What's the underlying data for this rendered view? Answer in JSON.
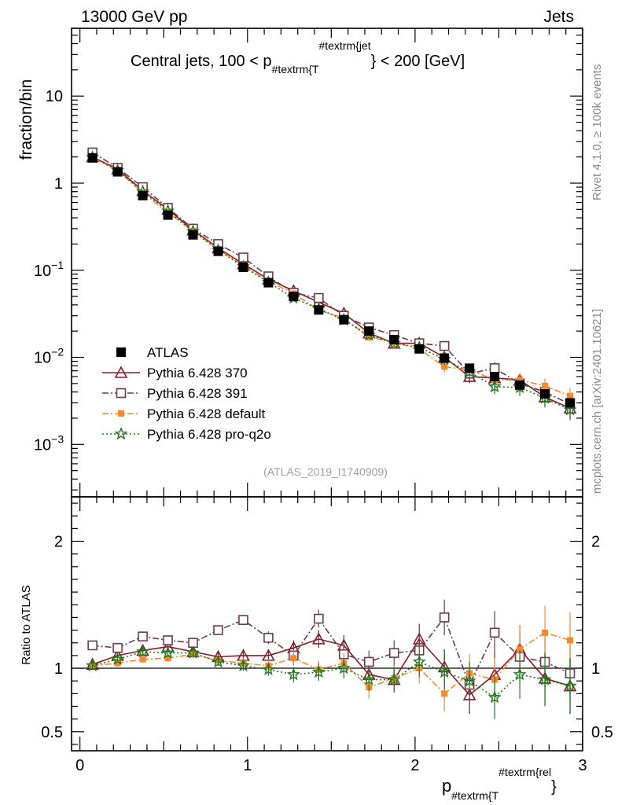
{
  "header": {
    "left_label": "13000 GeV pp",
    "right_label": "Jets",
    "side_label_top": "Rivet 4.1.0, ≥ 100k events",
    "side_label_bottom": "mcplots.cern.ch [arXiv:2401.10621]",
    "analysis_id": "(ATLAS_2019_I1740909)"
  },
  "colors": {
    "atlas": "#000000",
    "p370": "#8b1a2b",
    "p391": "#6e3a4e",
    "default": "#f58a2c",
    "proq2o": "#1a7a1a"
  },
  "chart_data": [
    {
      "type": "scatter",
      "panel": "main",
      "title": "Central jets, 100 < p_T^jet < 200 [GeV]",
      "title_parts": {
        "pre": "Central jets, 100 < p",
        "sub": "#textrm{T",
        "sup": "#textrm{jet",
        "post": "} < 200 [GeV]"
      },
      "ylabel": "fraction/bin",
      "yscale": "log",
      "ylim": [
        0.00025,
        60
      ],
      "xlim": [
        -0.05,
        3.0
      ],
      "yticks": [
        {
          "value": 10,
          "base": "10",
          "exp": ""
        },
        {
          "value": 1,
          "base": "1",
          "exp": ""
        },
        {
          "value": 0.1,
          "base": "10",
          "exp": "−1"
        },
        {
          "value": 0.01,
          "base": "10",
          "exp": "−2"
        },
        {
          "value": 0.001,
          "base": "10",
          "exp": "−3"
        }
      ],
      "x": [
        0.075,
        0.225,
        0.375,
        0.525,
        0.675,
        0.825,
        0.975,
        1.125,
        1.275,
        1.425,
        1.575,
        1.725,
        1.875,
        2.025,
        2.175,
        2.325,
        2.475,
        2.625,
        2.775,
        2.925
      ],
      "series": [
        {
          "name": "ATLAS",
          "key": "atlas",
          "marker": "square-filled",
          "line": "none",
          "values": [
            1.95,
            1.35,
            0.72,
            0.43,
            0.255,
            0.165,
            0.108,
            0.072,
            0.05,
            0.035,
            0.027,
            0.02,
            0.016,
            0.0125,
            0.0098,
            0.0075,
            0.006,
            0.0048,
            0.0038,
            0.003
          ]
        },
        {
          "name": "Pythia 6.428 370",
          "key": "p370",
          "marker": "triangle-open",
          "line": "solid",
          "values": [
            2.0,
            1.45,
            0.82,
            0.5,
            0.29,
            0.18,
            0.118,
            0.079,
            0.058,
            0.043,
            0.032,
            0.019,
            0.0145,
            0.0145,
            0.01,
            0.006,
            0.0058,
            0.0055,
            0.0035,
            0.0026
          ]
        },
        {
          "name": "Pythia 6.428 391",
          "key": "p391",
          "marker": "square-open",
          "line": "dashdot",
          "values": [
            2.25,
            1.5,
            0.9,
            0.52,
            0.3,
            0.2,
            0.14,
            0.085,
            0.055,
            0.048,
            0.03,
            0.022,
            0.018,
            0.0145,
            0.0135,
            0.0065,
            0.0075,
            0.005,
            0.004,
            0.0029
          ]
        },
        {
          "name": "Pythia 6.428 default",
          "key": "default",
          "marker": "square-small-filled",
          "line": "dashdot",
          "values": [
            2.0,
            1.4,
            0.77,
            0.46,
            0.28,
            0.175,
            0.112,
            0.075,
            0.054,
            0.035,
            0.028,
            0.017,
            0.015,
            0.0125,
            0.0078,
            0.0072,
            0.0055,
            0.0055,
            0.0047,
            0.0036
          ]
        },
        {
          "name": "Pythia 6.428 pro-q2o",
          "key": "proq2o",
          "marker": "star-open",
          "line": "dotted",
          "values": [
            1.98,
            1.4,
            0.8,
            0.48,
            0.28,
            0.17,
            0.11,
            0.073,
            0.048,
            0.036,
            0.027,
            0.018,
            0.0145,
            0.013,
            0.0095,
            0.0068,
            0.0046,
            0.0045,
            0.0034,
            0.0025
          ]
        }
      ],
      "legend": [
        "ATLAS",
        "Pythia 6.428 370",
        "Pythia 6.428 391",
        "Pythia 6.428 default",
        "Pythia 6.428 pro-q2o"
      ]
    },
    {
      "type": "scatter",
      "panel": "ratio",
      "ylabel": "Ratio to ATLAS",
      "xlabel": "p_T^rel",
      "xlabel_parts": {
        "pre": "p",
        "sub": "#textrm{T",
        "sup": "#textrm{rel",
        "post": "}"
      },
      "ylim": [
        0.35,
        2.35
      ],
      "xlim": [
        -0.05,
        3.0
      ],
      "yticks": [
        0.5,
        1,
        2
      ],
      "xticks": [
        0,
        1,
        2,
        3
      ],
      "reference": 1,
      "x": [
        0.075,
        0.225,
        0.375,
        0.525,
        0.675,
        0.825,
        0.975,
        1.125,
        1.275,
        1.425,
        1.575,
        1.725,
        1.875,
        2.025,
        2.175,
        2.325,
        2.475,
        2.625,
        2.775,
        2.925
      ],
      "series": [
        {
          "name": "Pythia 6.428 370",
          "key": "p370",
          "values": [
            1.03,
            1.1,
            1.14,
            1.17,
            1.13,
            1.09,
            1.1,
            1.1,
            1.16,
            1.23,
            1.18,
            0.95,
            0.91,
            1.23,
            1.01,
            0.79,
            0.95,
            1.15,
            0.92,
            0.86
          ],
          "errors": [
            0.02,
            0.02,
            0.02,
            0.03,
            0.03,
            0.03,
            0.04,
            0.05,
            0.06,
            0.07,
            0.08,
            0.09,
            0.1,
            0.12,
            0.14,
            0.15,
            0.17,
            0.19,
            0.21,
            0.22
          ]
        },
        {
          "name": "Pythia 6.428 391",
          "key": "p391",
          "values": [
            1.18,
            1.16,
            1.25,
            1.22,
            1.2,
            1.3,
            1.38,
            1.24,
            1.1,
            1.39,
            1.11,
            1.05,
            1.12,
            1.14,
            1.4,
            0.87,
            1.28,
            1.09,
            1.05,
            0.96
          ],
          "errors": [
            0.02,
            0.02,
            0.02,
            0.03,
            0.03,
            0.03,
            0.04,
            0.05,
            0.06,
            0.07,
            0.08,
            0.09,
            0.1,
            0.12,
            0.14,
            0.15,
            0.17,
            0.19,
            0.21,
            0.22
          ]
        },
        {
          "name": "Pythia 6.428 default",
          "key": "default",
          "values": [
            1.02,
            1.04,
            1.07,
            1.08,
            1.11,
            1.06,
            1.04,
            1.02,
            1.08,
            0.99,
            1.04,
            0.85,
            0.92,
            1.0,
            0.8,
            0.96,
            0.91,
            1.15,
            1.28,
            1.22
          ],
          "errors": [
            0.02,
            0.02,
            0.02,
            0.03,
            0.03,
            0.03,
            0.04,
            0.05,
            0.06,
            0.07,
            0.08,
            0.09,
            0.1,
            0.12,
            0.14,
            0.15,
            0.17,
            0.19,
            0.21,
            0.22
          ]
        },
        {
          "name": "Pythia 6.428 pro-q2o",
          "key": "proq2o",
          "values": [
            1.02,
            1.07,
            1.13,
            1.12,
            1.12,
            1.05,
            1.02,
            0.99,
            0.95,
            0.97,
            1.0,
            0.91,
            0.91,
            1.05,
            0.97,
            0.9,
            0.77,
            0.95,
            0.91,
            0.86
          ],
          "errors": [
            0.02,
            0.02,
            0.02,
            0.03,
            0.03,
            0.03,
            0.04,
            0.05,
            0.06,
            0.07,
            0.08,
            0.09,
            0.1,
            0.12,
            0.14,
            0.15,
            0.17,
            0.19,
            0.21,
            0.22
          ]
        }
      ]
    }
  ]
}
